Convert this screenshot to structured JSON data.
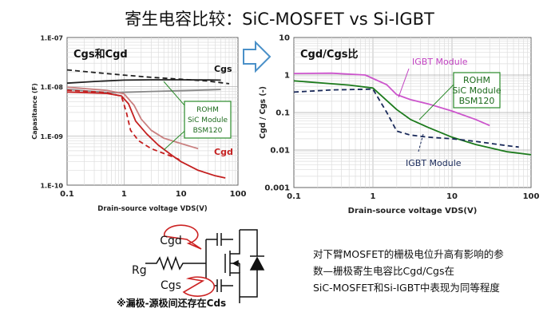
{
  "title": "寄生电容比较：SiC-MOSFET vs Si-IGBT",
  "arrow_color": "#4a90c8",
  "chart_data": [
    {
      "type": "line",
      "title": "Cgs和Cgd",
      "xlabel": "Drain-source voltage VDS(V)",
      "ylabel": "Capasitance (F)",
      "xscale": "log",
      "yscale": "log",
      "xlim": [
        0.1,
        100
      ],
      "ylim": [
        1e-10,
        1e-07
      ],
      "xticks": [
        "0.1",
        "1",
        "10",
        "100"
      ],
      "yticks": [
        "1.E-10",
        "1.E-09",
        "1.E-08",
        "1.E-07"
      ],
      "grid": true,
      "series": [
        {
          "name": "Cgs",
          "style": "dashed",
          "color": "#222222",
          "label": "",
          "points": [
            [
              0.1,
              2.2e-08
            ],
            [
              0.3,
              1.95e-08
            ],
            [
              1,
              1.72e-08
            ],
            [
              3,
              1.55e-08
            ],
            [
              10,
              1.42e-08
            ],
            [
              30,
              1.3e-08
            ],
            [
              70,
              1.15e-08
            ]
          ]
        },
        {
          "name": "",
          "style": "solid",
          "color": "#222222",
          "label": "",
          "points": [
            [
              0.1,
              1.18e-08
            ],
            [
              0.3,
              1.28e-08
            ],
            [
              1,
              1.36e-08
            ],
            [
              3,
              1.38e-08
            ],
            [
              10,
              1.38e-08
            ],
            [
              30,
              1.37e-08
            ],
            [
              50,
              1.36e-08
            ]
          ]
        },
        {
          "name": "",
          "style": "solid",
          "color": "#888888",
          "label": "",
          "points": [
            [
              0.1,
              8.8e-09
            ],
            [
              0.3,
              8e-09
            ],
            [
              0.6,
              7.5e-09
            ],
            [
              1,
              7.7e-09
            ],
            [
              3,
              8e-09
            ],
            [
              10,
              8.3e-09
            ],
            [
              30,
              8.6e-09
            ],
            [
              50,
              8.8e-09
            ]
          ]
        },
        {
          "name": "Cgd",
          "style": "solid",
          "color": "#c42020",
          "label": "",
          "points": [
            [
              0.1,
              7.8e-09
            ],
            [
              0.5,
              7.3e-09
            ],
            [
              0.9,
              6.5e-09
            ],
            [
              1.2,
              4.5e-09
            ],
            [
              1.6,
              2e-09
            ],
            [
              2.5,
              1.1e-09
            ],
            [
              4,
              6.5e-10
            ],
            [
              7,
              4e-10
            ],
            [
              10,
              3e-10
            ],
            [
              20,
              2e-10
            ],
            [
              40,
              1.55e-10
            ],
            [
              60,
              1.4e-10
            ]
          ]
        },
        {
          "name": "",
          "style": "dashed",
          "color": "#c42020",
          "label": "",
          "points": [
            [
              0.1,
              8.5e-09
            ],
            [
              0.5,
              7.6e-09
            ],
            [
              0.9,
              6.4e-09
            ],
            [
              1.1,
              3e-09
            ],
            [
              1.3,
              1.3e-09
            ],
            [
              1.8,
              8e-10
            ],
            [
              3,
              5.5e-10
            ],
            [
              7,
              3.8e-10
            ],
            [
              10,
              3.2e-10
            ]
          ]
        },
        {
          "name": "",
          "style": "solid",
          "color": "#c98080",
          "label": "",
          "points": [
            [
              0.1,
              9.8e-09
            ],
            [
              0.5,
              8.4e-09
            ],
            [
              1,
              7.2e-09
            ],
            [
              1.5,
              4.2e-09
            ],
            [
              2,
              2.2e-09
            ],
            [
              3,
              1.3e-09
            ],
            [
              5,
              9e-10
            ],
            [
              10,
              7e-10
            ],
            [
              20,
              5.5e-10
            ]
          ]
        }
      ],
      "annotation": {
        "lines": [
          "ROHM",
          "SiC Module",
          "BSM120"
        ],
        "border": "#2a8a2a"
      }
    },
    {
      "type": "line",
      "title": "Cgd/Cgs比",
      "xlabel": "Drain-source voltage VDS(V)",
      "ylabel": "Cgd / Cgs (-)",
      "xscale": "log",
      "yscale": "log",
      "xlim": [
        0.1,
        100
      ],
      "ylim": [
        0.001,
        10
      ],
      "xticks": [
        "0.1",
        "1",
        "10",
        "100"
      ],
      "yticks": [
        "0.001",
        "0.01",
        "0.1",
        "1",
        "10"
      ],
      "grid": true,
      "series": [
        {
          "name": "IGBT Module",
          "style": "solid",
          "color": "#cc55cc",
          "label": "IGBT Module",
          "points": [
            [
              0.1,
              1.1
            ],
            [
              0.3,
              1.12
            ],
            [
              0.8,
              1.0
            ],
            [
              1.5,
              0.55
            ],
            [
              2,
              0.3
            ],
            [
              3,
              0.22
            ],
            [
              5,
              0.17
            ],
            [
              10,
              0.11
            ],
            [
              20,
              0.065
            ],
            [
              30,
              0.045
            ]
          ]
        },
        {
          "name": "ROHM SiC Module BSM120",
          "style": "solid",
          "color": "#1c7a1c",
          "label": "",
          "points": [
            [
              0.1,
              0.7
            ],
            [
              0.5,
              0.54
            ],
            [
              1,
              0.45
            ],
            [
              2,
              0.12
            ],
            [
              3,
              0.065
            ],
            [
              5,
              0.04
            ],
            [
              10,
              0.022
            ],
            [
              20,
              0.014
            ],
            [
              50,
              0.009
            ],
            [
              100,
              0.0075
            ]
          ]
        },
        {
          "name": "IGBT Module",
          "style": "dashed",
          "color": "#1a2a5a",
          "label": "IGBT Module",
          "points": [
            [
              0.1,
              0.35
            ],
            [
              0.3,
              0.4
            ],
            [
              1,
              0.42
            ],
            [
              1.5,
              0.1
            ],
            [
              2,
              0.032
            ],
            [
              3,
              0.025
            ],
            [
              5,
              0.022
            ],
            [
              10,
              0.02
            ],
            [
              20,
              0.017
            ],
            [
              50,
              0.013
            ],
            [
              70,
              0.012
            ]
          ]
        }
      ],
      "annotation": {
        "lines": [
          "ROHM",
          "SiC Module",
          "BSM120"
        ],
        "border": "#2a8a2a"
      }
    }
  ],
  "circuit": {
    "cgd_label": "Cgd",
    "cgs_label": "Cgs",
    "rg_label": "Rg",
    "bubble_color": "#cc2222"
  },
  "description": [
    "对下臂MOSFET的栅极电位升高有影响的参",
    "数—栅极寄生电容比Cgd/Cgs在",
    "SiC-MOSFET和Si-IGBT中表现为同等程度"
  ],
  "note": "※漏极-源极间还存在Cds"
}
